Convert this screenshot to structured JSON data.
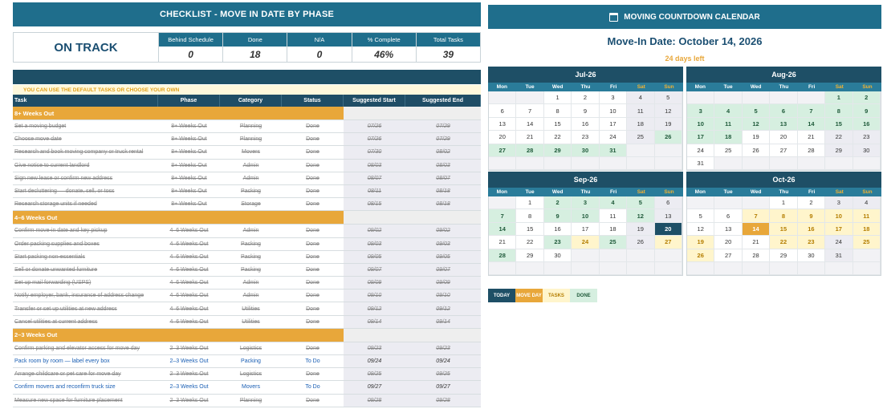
{
  "checklist": {
    "title": "CHECKLIST - MOVE IN DATE BY PHASE",
    "status": "ON TRACK",
    "stats": [
      {
        "label": "Behind Schedule",
        "value": "0"
      },
      {
        "label": "Done",
        "value": "18"
      },
      {
        "label": "N/A",
        "value": "0"
      },
      {
        "label": "% Complete",
        "value": "46%"
      },
      {
        "label": "Total Tasks",
        "value": "39"
      }
    ],
    "hint": "YOU CAN USE THE DEFAULT TASKS OR CHOOSE YOUR OWN",
    "columns": [
      "Task",
      "Phase",
      "Category",
      "Status",
      "Suggested Start",
      "Suggested End"
    ],
    "sections": [
      {
        "name": "8+ Weeks Out",
        "rows": [
          {
            "task": "Set a moving budget",
            "phase": "8+ Weeks Out",
            "category": "Planning",
            "status": "Done",
            "start": "07/26",
            "end": "07/29",
            "done": true
          },
          {
            "task": "Choose move date",
            "phase": "8+ Weeks Out",
            "category": "Planning",
            "status": "Done",
            "start": "07/26",
            "end": "07/29",
            "done": true
          },
          {
            "task": "Research and book moving company or truck rental",
            "phase": "8+ Weeks Out",
            "category": "Movers",
            "status": "Done",
            "start": "07/30",
            "end": "08/02",
            "done": true
          },
          {
            "task": "Give notice to current landlord",
            "phase": "8+ Weeks Out",
            "category": "Admin",
            "status": "Done",
            "start": "08/03",
            "end": "08/03",
            "done": true
          },
          {
            "task": "Sign new lease or confirm new address",
            "phase": "8+ Weeks Out",
            "category": "Admin",
            "status": "Done",
            "start": "08/07",
            "end": "08/07",
            "done": true
          },
          {
            "task": "Start decluttering — donate, sell, or toss",
            "phase": "8+ Weeks Out",
            "category": "Packing",
            "status": "Done",
            "start": "08/11",
            "end": "08/18",
            "done": true
          },
          {
            "task": "Research storage units if needed",
            "phase": "8+ Weeks Out",
            "category": "Storage",
            "status": "Done",
            "start": "08/15",
            "end": "08/18",
            "done": true
          }
        ]
      },
      {
        "name": "4–6 Weeks Out",
        "rows": [
          {
            "task": "Confirm move-in date and key pickup",
            "phase": "4–6 Weeks Out",
            "category": "Admin",
            "status": "Done",
            "start": "09/02",
            "end": "09/02",
            "done": true
          },
          {
            "task": "Order packing supplies and boxes",
            "phase": "4–6 Weeks Out",
            "category": "Packing",
            "status": "Done",
            "start": "09/03",
            "end": "09/03",
            "done": true
          },
          {
            "task": "Start packing non-essentials",
            "phase": "4–6 Weeks Out",
            "category": "Packing",
            "status": "Done",
            "start": "09/05",
            "end": "09/05",
            "done": true
          },
          {
            "task": "Sell or donate unwanted furniture",
            "phase": "4–6 Weeks Out",
            "category": "Packing",
            "status": "Done",
            "start": "09/07",
            "end": "09/07",
            "done": true
          },
          {
            "task": "Set up mail forwarding (USPS)",
            "phase": "4–6 Weeks Out",
            "category": "Admin",
            "status": "Done",
            "start": "09/09",
            "end": "09/09",
            "done": true
          },
          {
            "task": "Notify employer, bank, insurance of address change",
            "phase": "4–6 Weeks Out",
            "category": "Admin",
            "status": "Done",
            "start": "09/10",
            "end": "09/10",
            "done": true
          },
          {
            "task": "Transfer or set up utilities at new address",
            "phase": "4–6 Weeks Out",
            "category": "Utilities",
            "status": "Done",
            "start": "09/12",
            "end": "09/12",
            "done": true
          },
          {
            "task": "Cancel utilities at current address",
            "phase": "4–6 Weeks Out",
            "category": "Utilities",
            "status": "Done",
            "start": "09/14",
            "end": "09/14",
            "done": true
          }
        ]
      },
      {
        "name": "2–3 Weeks Out",
        "rows": [
          {
            "task": "Confirm parking and elevator access for move day",
            "phase": "2–3 Weeks Out",
            "category": "Logistics",
            "status": "Done",
            "start": "09/23",
            "end": "09/23",
            "done": true
          },
          {
            "task": "Pack room by room — label every box",
            "phase": "2–3 Weeks Out",
            "category": "Packing",
            "status": "To Do",
            "start": "09/24",
            "end": "09/24",
            "done": false
          },
          {
            "task": "Arrange childcare or pet care for move day",
            "phase": "2–3 Weeks Out",
            "category": "Logistics",
            "status": "Done",
            "start": "09/25",
            "end": "09/25",
            "done": true
          },
          {
            "task": "Confirm movers and reconfirm truck size",
            "phase": "2–3 Weeks Out",
            "category": "Movers",
            "status": "To Do",
            "start": "09/27",
            "end": "09/27",
            "done": false
          },
          {
            "task": "Measure new space for furniture placement",
            "phase": "2–3 Weeks Out",
            "category": "Planning",
            "status": "Done",
            "start": "09/28",
            "end": "09/28",
            "done": true
          }
        ]
      }
    ]
  },
  "calendar": {
    "title": "MOVING COUNTDOWN CALENDAR",
    "move_in_label": "Move-In Date:",
    "move_in_date": "October 14, 2026",
    "days_left": "24 days left",
    "weekdays": [
      "Mon",
      "Tue",
      "Wed",
      "Thu",
      "Fri",
      "Sat",
      "Sun"
    ],
    "months": [
      {
        "name": "Jul-26",
        "offset": 2,
        "days": 31,
        "done": [
          26,
          27,
          28,
          29,
          30,
          31
        ],
        "tasks": [],
        "today": null,
        "move": null
      },
      {
        "name": "Aug-26",
        "offset": 5,
        "days": 31,
        "done": [
          1,
          2,
          3,
          4,
          5,
          6,
          7,
          8,
          9,
          10,
          11,
          12,
          13,
          14,
          15,
          16,
          17,
          18
        ],
        "tasks": [],
        "today": null,
        "move": null
      },
      {
        "name": "Sep-26",
        "offset": 1,
        "days": 30,
        "done": [
          2,
          3,
          4,
          5,
          7,
          9,
          10,
          12,
          14,
          23,
          25,
          28
        ],
        "tasks": [
          24,
          27
        ],
        "today": 20,
        "move": null
      },
      {
        "name": "Oct-26",
        "offset": 3,
        "days": 31,
        "done": [],
        "tasks": [
          7,
          8,
          9,
          10,
          11,
          15,
          16,
          17,
          18,
          19,
          22,
          23,
          25,
          26
        ],
        "today": null,
        "move": 14
      }
    ],
    "legend": [
      "TODAY",
      "MOVE DAY",
      "TASKS",
      "DONE"
    ]
  }
}
